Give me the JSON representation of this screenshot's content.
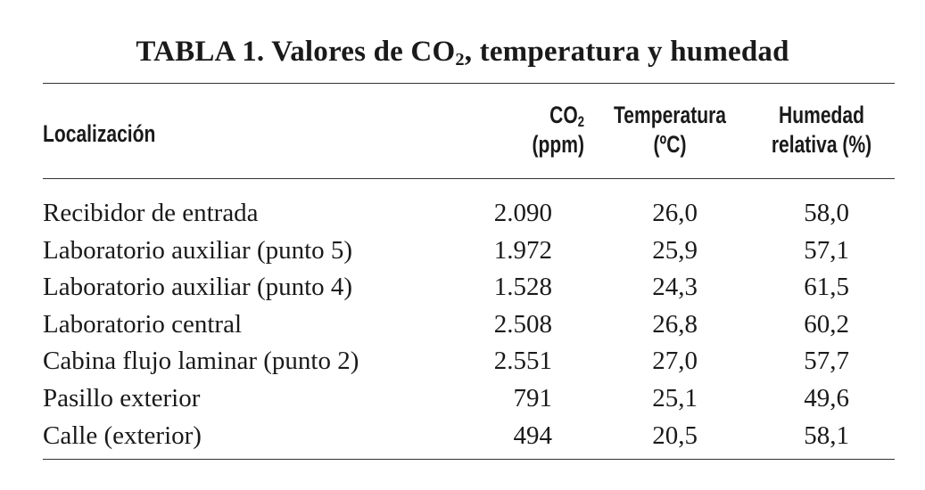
{
  "table": {
    "title_main": "TABLA 1. Valores de CO",
    "title_sub": "2",
    "title_rest": ", temperatura y humedad",
    "headers": {
      "location": "Localización",
      "co2_main": "CO",
      "co2_sub": "2",
      "co2_unit": "(ppm)",
      "temp_line1": "Temperatura",
      "temp_line2": "(ºC)",
      "hum_line1": "Humedad",
      "hum_line2": "relativa (%)"
    },
    "rows": [
      {
        "location": "Recibidor de entrada",
        "co2": "2.090",
        "temp": "26,0",
        "hum": "58,0"
      },
      {
        "location": "Laboratorio auxiliar (punto 5)",
        "co2": "1.972",
        "temp": "25,9",
        "hum": "57,1"
      },
      {
        "location": "Laboratorio auxiliar (punto 4)",
        "co2": "1.528",
        "temp": "24,3",
        "hum": "61,5"
      },
      {
        "location": "Laboratorio central",
        "co2": "2.508",
        "temp": "26,8",
        "hum": "60,2"
      },
      {
        "location": "Cabina flujo laminar (punto 2)",
        "co2": "2.551",
        "temp": "27,0",
        "hum": "57,7"
      },
      {
        "location": "Pasillo exterior",
        "co2": "791",
        "temp": "25,1",
        "hum": "49,6"
      },
      {
        "location": "Calle (exterior)",
        "co2": "494",
        "temp": "20,5",
        "hum": "58,1"
      }
    ]
  }
}
